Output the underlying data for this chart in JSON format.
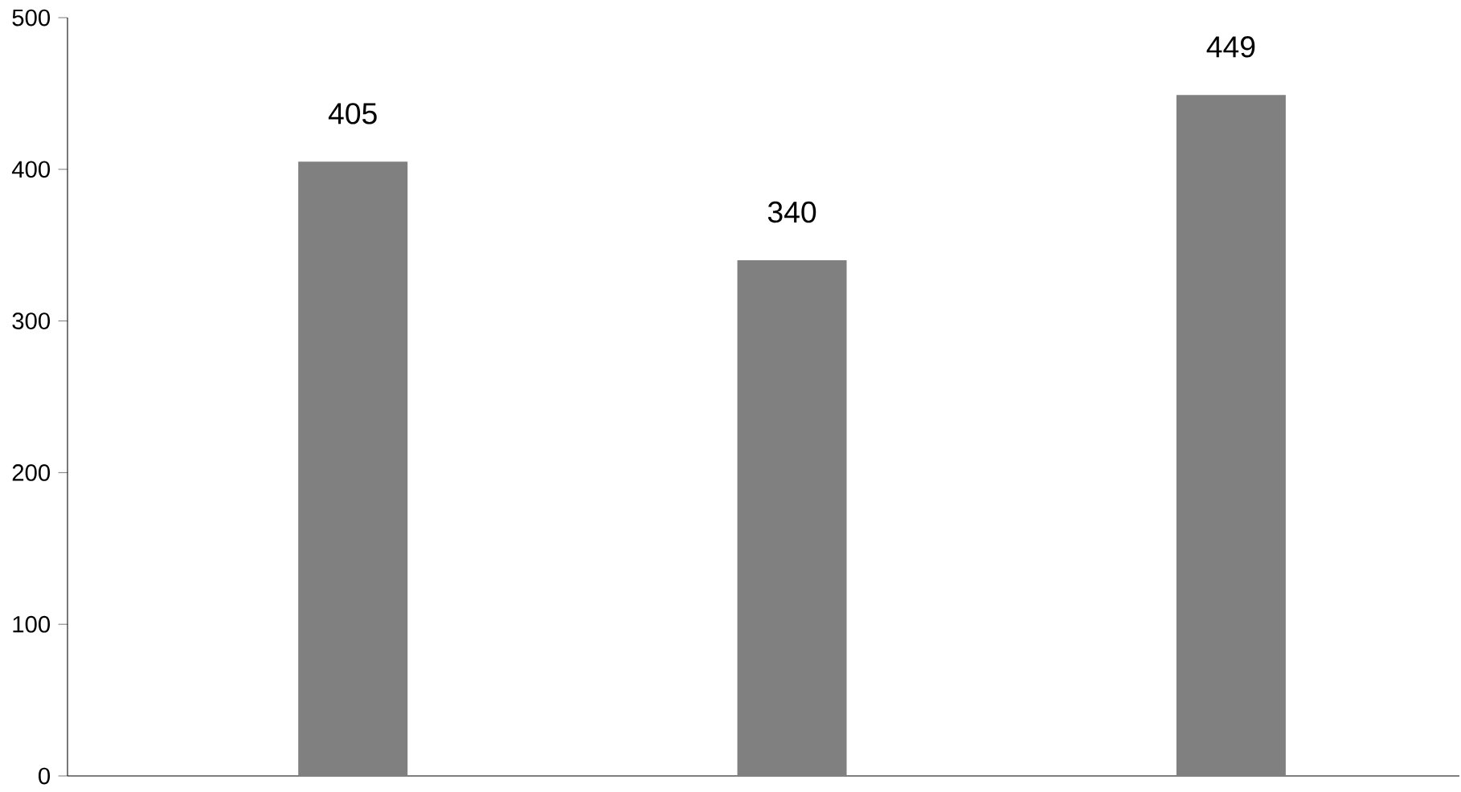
{
  "chart_data": {
    "type": "bar",
    "categories": [
      null,
      null,
      null
    ],
    "values": [
      405,
      340,
      449
    ],
    "color": "#808080",
    "ylim": [
      0,
      500
    ],
    "yticks": [
      0,
      100,
      200,
      300,
      400,
      500
    ],
    "data_labels": true,
    "grid": false
  }
}
